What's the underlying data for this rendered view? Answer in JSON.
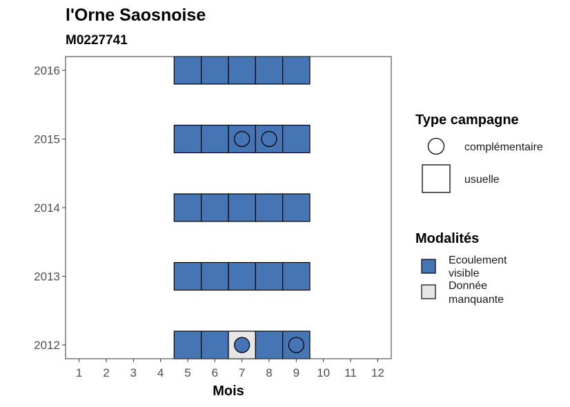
{
  "chart_data": {
    "type": "tile",
    "title": "l'Orne Saosnoise",
    "subtitle": "M0227741",
    "xlabel": "Mois",
    "ylabel": "",
    "x_ticks": [
      "1",
      "2",
      "3",
      "4",
      "5",
      "6",
      "7",
      "8",
      "9",
      "10",
      "11",
      "12"
    ],
    "y_ticks": [
      "2012",
      "2013",
      "2014",
      "2015",
      "2016"
    ],
    "xlim": [
      0.5,
      12.5
    ],
    "ylim": [
      2011.8,
      2016.2
    ],
    "grid": false,
    "legends": [
      {
        "title": "Type campagne",
        "placement": "right",
        "entries": [
          {
            "label": "complémentaire",
            "shape": "circle"
          },
          {
            "label": "usuelle",
            "shape": "square"
          }
        ]
      },
      {
        "title": "Modalités",
        "placement": "right",
        "entries": [
          {
            "label_lines": [
              "Ecoulement",
              "visible"
            ],
            "color": "#4575b4"
          },
          {
            "label_lines": [
              "Donnée",
              "manquante"
            ],
            "color": "#e6e6e6"
          }
        ]
      }
    ],
    "points": [
      {
        "year": 2012,
        "month": 5,
        "modalite": "Ecoulement visible",
        "campagne": "usuelle"
      },
      {
        "year": 2012,
        "month": 6,
        "modalite": "Ecoulement visible",
        "campagne": "usuelle"
      },
      {
        "year": 2012,
        "month": 7,
        "modalite": "Donnée manquante",
        "campagne": "usuelle"
      },
      {
        "year": 2012,
        "month": 7,
        "modalite": "Ecoulement visible",
        "campagne": "complémentaire"
      },
      {
        "year": 2012,
        "month": 8,
        "modalite": "Ecoulement visible",
        "campagne": "usuelle"
      },
      {
        "year": 2012,
        "month": 9,
        "modalite": "Ecoulement visible",
        "campagne": "usuelle"
      },
      {
        "year": 2012,
        "month": 9,
        "modalite": "Ecoulement visible",
        "campagne": "complémentaire"
      },
      {
        "year": 2013,
        "month": 5,
        "modalite": "Ecoulement visible",
        "campagne": "usuelle"
      },
      {
        "year": 2013,
        "month": 6,
        "modalite": "Ecoulement visible",
        "campagne": "usuelle"
      },
      {
        "year": 2013,
        "month": 7,
        "modalite": "Ecoulement visible",
        "campagne": "usuelle"
      },
      {
        "year": 2013,
        "month": 8,
        "modalite": "Ecoulement visible",
        "campagne": "usuelle"
      },
      {
        "year": 2013,
        "month": 9,
        "modalite": "Ecoulement visible",
        "campagne": "usuelle"
      },
      {
        "year": 2014,
        "month": 5,
        "modalite": "Ecoulement visible",
        "campagne": "usuelle"
      },
      {
        "year": 2014,
        "month": 6,
        "modalite": "Ecoulement visible",
        "campagne": "usuelle"
      },
      {
        "year": 2014,
        "month": 7,
        "modalite": "Ecoulement visible",
        "campagne": "usuelle"
      },
      {
        "year": 2014,
        "month": 8,
        "modalite": "Ecoulement visible",
        "campagne": "usuelle"
      },
      {
        "year": 2014,
        "month": 9,
        "modalite": "Ecoulement visible",
        "campagne": "usuelle"
      },
      {
        "year": 2015,
        "month": 5,
        "modalite": "Ecoulement visible",
        "campagne": "usuelle"
      },
      {
        "year": 2015,
        "month": 6,
        "modalite": "Ecoulement visible",
        "campagne": "usuelle"
      },
      {
        "year": 2015,
        "month": 7,
        "modalite": "Ecoulement visible",
        "campagne": "usuelle"
      },
      {
        "year": 2015,
        "month": 7,
        "modalite": "Ecoulement visible",
        "campagne": "complémentaire"
      },
      {
        "year": 2015,
        "month": 8,
        "modalite": "Ecoulement visible",
        "campagne": "usuelle"
      },
      {
        "year": 2015,
        "month": 8,
        "modalite": "Ecoulement visible",
        "campagne": "complémentaire"
      },
      {
        "year": 2015,
        "month": 9,
        "modalite": "Ecoulement visible",
        "campagne": "usuelle"
      },
      {
        "year": 2016,
        "month": 5,
        "modalite": "Ecoulement visible",
        "campagne": "usuelle"
      },
      {
        "year": 2016,
        "month": 6,
        "modalite": "Ecoulement visible",
        "campagne": "usuelle"
      },
      {
        "year": 2016,
        "month": 7,
        "modalite": "Ecoulement visible",
        "campagne": "usuelle"
      },
      {
        "year": 2016,
        "month": 8,
        "modalite": "Ecoulement visible",
        "campagne": "usuelle"
      },
      {
        "year": 2016,
        "month": 9,
        "modalite": "Ecoulement visible",
        "campagne": "usuelle"
      }
    ],
    "colors": {
      "Ecoulement visible": "#4575b4",
      "Donnée manquante": "#e6e6e6"
    }
  }
}
